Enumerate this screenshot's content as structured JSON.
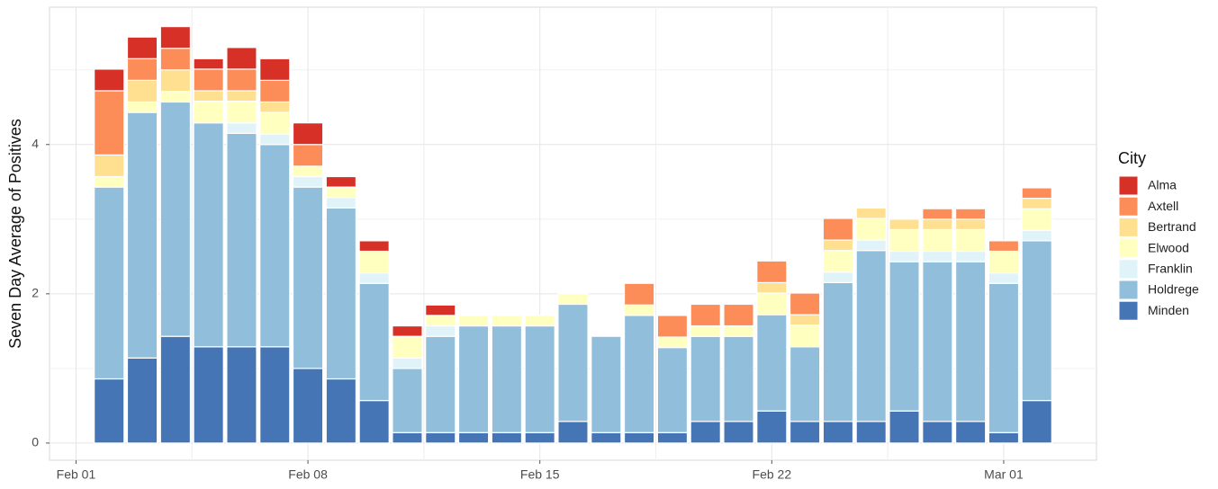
{
  "chart_data": {
    "type": "stacked_bar",
    "y_label": "Seven Day Average of Positives",
    "legend_title": "City",
    "x": [
      "Feb 02",
      "Feb 03",
      "Feb 04",
      "Feb 05",
      "Feb 06",
      "Feb 07",
      "Feb 08",
      "Feb 09",
      "Feb 10",
      "Feb 11",
      "Feb 12",
      "Feb 13",
      "Feb 14",
      "Feb 15",
      "Feb 16",
      "Feb 17",
      "Feb 18",
      "Feb 19",
      "Feb 20",
      "Feb 21",
      "Feb 22",
      "Feb 23",
      "Feb 24",
      "Feb 25",
      "Feb 26",
      "Feb 27",
      "Feb 28",
      "Mar 01",
      "Mar 02"
    ],
    "xticks": [
      "Feb 01",
      "Feb 08",
      "Feb 15",
      "Feb 22",
      "Mar 01"
    ],
    "ylim": [
      -0.23,
      5.84
    ],
    "yticks": [
      0,
      2,
      4
    ],
    "grid": true,
    "legend_position": "right",
    "series": [
      {
        "name": "Alma",
        "color": "#d73027",
        "values": [
          0.29,
          0.29,
          0.29,
          0.14,
          0.29,
          0.29,
          0.29,
          0.14,
          0.14,
          0.14,
          0.14,
          0,
          0,
          0,
          0,
          0,
          0,
          0,
          0,
          0,
          0,
          0,
          0,
          0,
          0,
          0,
          0,
          0,
          0
        ]
      },
      {
        "name": "Axtell",
        "color": "#fc8d59",
        "values": [
          0.86,
          0.29,
          0.29,
          0.29,
          0.29,
          0.29,
          0.29,
          0,
          0,
          0,
          0,
          0,
          0,
          0,
          0,
          0,
          0.29,
          0.29,
          0.29,
          0.29,
          0.29,
          0.29,
          0.29,
          0,
          0,
          0.14,
          0.14,
          0.14,
          0.14
        ]
      },
      {
        "name": "Bertrand",
        "color": "#fee090",
        "values": [
          0.29,
          0.29,
          0.29,
          0.14,
          0.14,
          0.14,
          0,
          0,
          0,
          0,
          0,
          0,
          0,
          0,
          0,
          0,
          0,
          0,
          0,
          0,
          0.14,
          0.14,
          0.14,
          0.14,
          0.14,
          0.14,
          0.14,
          0,
          0.14
        ]
      },
      {
        "name": "Elwood",
        "color": "#ffffbf",
        "values": [
          0.14,
          0.14,
          0.14,
          0.29,
          0.29,
          0.29,
          0.14,
          0.14,
          0.29,
          0.29,
          0.14,
          0.14,
          0.14,
          0.14,
          0.14,
          0,
          0.14,
          0.14,
          0.14,
          0.14,
          0.29,
          0.29,
          0.29,
          0.29,
          0.29,
          0.29,
          0.29,
          0.29,
          0.29
        ]
      },
      {
        "name": "Franklin",
        "color": "#e0f3f8",
        "values": [
          0,
          0,
          0,
          0,
          0.14,
          0.14,
          0.14,
          0.14,
          0.14,
          0.14,
          0.14,
          0,
          0,
          0,
          0,
          0,
          0,
          0,
          0,
          0,
          0,
          0,
          0.14,
          0.14,
          0.14,
          0.14,
          0.14,
          0.14,
          0.14
        ]
      },
      {
        "name": "Holdrege",
        "color": "#91bfdb",
        "values": [
          2.57,
          3.29,
          3.14,
          3,
          2.86,
          2.71,
          2.43,
          2.29,
          1.57,
          0.86,
          1.29,
          1.43,
          1.43,
          1.43,
          1.57,
          1.29,
          1.57,
          1.14,
          1.14,
          1.14,
          1.29,
          1,
          1.86,
          2.29,
          2,
          2.14,
          2.14,
          2,
          2.14
        ]
      },
      {
        "name": "Minden",
        "color": "#4575b4",
        "values": [
          0.86,
          1.14,
          1.43,
          1.29,
          1.29,
          1.29,
          1,
          0.86,
          0.57,
          0.14,
          0.14,
          0.14,
          0.14,
          0.14,
          0.29,
          0.14,
          0.14,
          0.14,
          0.29,
          0.29,
          0.43,
          0.29,
          0.29,
          0.29,
          0.43,
          0.29,
          0.29,
          0.14,
          0.57
        ]
      }
    ]
  }
}
